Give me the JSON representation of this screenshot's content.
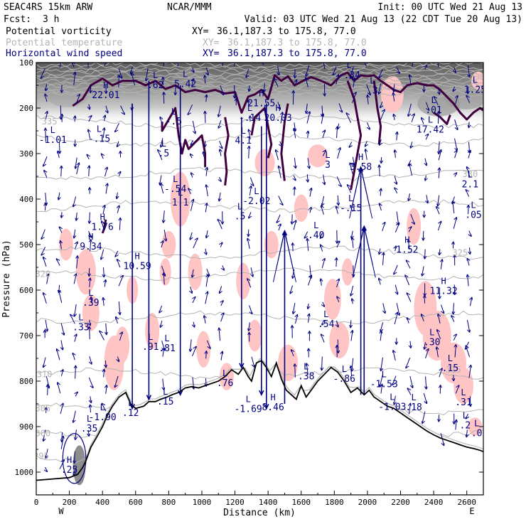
{
  "header": {
    "model": "SEAC4RS 15km ARW",
    "institution": "NCAR/MMM",
    "init": "Init: 00 UTC Wed 21 Aug 13",
    "fcst_label": "Fcst:",
    "fcst_value": "3 h",
    "valid": "Valid: 03 UTC Wed 21 Aug 13 (22 CDT Tue 20 Aug 13)"
  },
  "legend": [
    {
      "name": "Potential vorticity",
      "xy_label": "XY=",
      "xy_value": "36.1,187.3 to 175.8, 77.0",
      "color": "#000000"
    },
    {
      "name": "Potential temperature",
      "xy_label": "XY=",
      "xy_value": "36.1,187.3 to 175.8, 77.0",
      "color": "#b4b4b4"
    },
    {
      "name": "Horizontal wind speed",
      "xy_label": "XY=",
      "xy_value": "36.1,187.3 to 175.8, 77.0",
      "color": "#000080"
    }
  ],
  "chart_data": {
    "type": "cross-section",
    "xlabel": "Distance (km)",
    "ylabel": "Pressure (hPa)",
    "xlim": [
      0,
      2700
    ],
    "ylim": [
      1050,
      100
    ],
    "xticks": [
      0,
      200,
      400,
      600,
      800,
      1000,
      1200,
      1400,
      1600,
      1800,
      2000,
      2200,
      2400,
      2600
    ],
    "yticks": [
      100,
      200,
      300,
      400,
      500,
      600,
      700,
      800,
      900,
      1000
    ],
    "left_end_label": "W",
    "right_end_label": "E",
    "theta_contour_labels": [
      {
        "text": "335",
        "x": 80,
        "p": 230
      },
      {
        "text": "330",
        "x": 2620,
        "p": 345
      },
      {
        "text": "325",
        "x": 2560,
        "p": 518
      },
      {
        "text": "320",
        "x": 40,
        "p": 565
      },
      {
        "text": "315",
        "x": 2520,
        "p": 775
      },
      {
        "text": "310",
        "x": 50,
        "p": 785
      },
      {
        "text": "305",
        "x": 40,
        "p": 860
      },
      {
        "text": "300",
        "x": 40,
        "p": 915
      },
      {
        "text": "295",
        "x": 30,
        "p": 965
      }
    ],
    "pv_extrema": [
      {
        "type": "H",
        "value": "22.01",
        "x": 420,
        "p": 172
      },
      {
        "type": "L",
        "value": ".62",
        "x": 720,
        "p": 150
      },
      {
        "type": "L",
        "value": "5.42",
        "x": 900,
        "p": 148
      },
      {
        "type": "L",
        "value": "-1.01",
        "x": 100,
        "p": 270
      },
      {
        "type": "L",
        "value": "-.15",
        "x": 380,
        "p": 268
      },
      {
        "type": "L",
        "value": ".5",
        "x": 770,
        "p": 300
      },
      {
        "type": "L",
        "value": "-.5",
        "x": 830,
        "p": 230
      },
      {
        "type": "L",
        "value": "-.54",
        "x": 840,
        "p": 378
      },
      {
        "type": "L",
        "value": "1.1",
        "x": 870,
        "p": 408
      },
      {
        "type": "L",
        "value": "-.14",
        "x": 1290,
        "p": 222
      },
      {
        "type": "L",
        "value": "4.1",
        "x": 1250,
        "p": 272
      },
      {
        "type": "H",
        "value": "21.55",
        "x": 1360,
        "p": 190
      },
      {
        "type": "H",
        "value": "20.03",
        "x": 1460,
        "p": 222
      },
      {
        "type": "L",
        "value": "-2.02",
        "x": 1330,
        "p": 405
      },
      {
        "type": "H",
        "value": "1.76",
        "x": 400,
        "p": 462
      },
      {
        "type": "H",
        "value": "9.34",
        "x": 330,
        "p": 505
      },
      {
        "type": "H",
        "value": "10.59",
        "x": 610,
        "p": 548
      },
      {
        "type": "L",
        "value": ".39",
        "x": 330,
        "p": 628
      },
      {
        "type": "L",
        "value": ".33",
        "x": 270,
        "p": 682
      },
      {
        "type": "L",
        "value": ".40",
        "x": 1690,
        "p": 480
      },
      {
        "type": "L",
        "value": ".54",
        "x": 1750,
        "p": 675
      },
      {
        "type": "H",
        "value": "3.58",
        "x": 1960,
        "p": 330
      },
      {
        "type": "L",
        "value": "-.15",
        "x": 1900,
        "p": 420
      },
      {
        "type": "L",
        "value": ".38",
        "x": 1630,
        "p": 790
      },
      {
        "type": "L",
        "value": "-.86",
        "x": 1860,
        "p": 795
      },
      {
        "type": "L",
        "value": "-1.53",
        "x": 2100,
        "p": 807
      },
      {
        "type": "H",
        "value": "1.52",
        "x": 2240,
        "p": 512
      },
      {
        "type": "H",
        "value": "11.32",
        "x": 2460,
        "p": 602
      },
      {
        "type": "L",
        "value": ".30",
        "x": 2390,
        "p": 715
      },
      {
        "type": "L",
        "value": ".15",
        "x": 2500,
        "p": 772
      },
      {
        "type": "L",
        "value": ".91",
        "x": 690,
        "p": 725
      },
      {
        "type": "L",
        "value": ".81",
        "x": 790,
        "p": 728
      },
      {
        "type": "L",
        "value": ".76",
        "x": 1140,
        "p": 805
      },
      {
        "type": "L",
        "value": "-1.69",
        "x": 1280,
        "p": 862
      },
      {
        "type": "H",
        "value": "8.46",
        "x": 1430,
        "p": 858
      },
      {
        "type": "L",
        "value": ".15",
        "x": 780,
        "p": 845
      },
      {
        "type": "L",
        "value": ".12",
        "x": 570,
        "p": 870
      },
      {
        "type": "L",
        "value": "-1.90",
        "x": 400,
        "p": 880
      },
      {
        "type": "L",
        "value": "-1.03",
        "x": 2150,
        "p": 857
      },
      {
        "type": "L",
        "value": ".18",
        "x": 2280,
        "p": 858
      },
      {
        "type": "L",
        "value": ".31",
        "x": 2580,
        "p": 847
      },
      {
        "type": "L",
        "value": ".2",
        "x": 2590,
        "p": 898
      },
      {
        "type": "L",
        "value": ".0",
        "x": 2660,
        "p": 915
      },
      {
        "type": "H",
        "value": ".25",
        "x": 200,
        "p": 995
      },
      {
        "type": "L",
        "value": ".35",
        "x": 320,
        "p": 905
      },
      {
        "type": "L",
        "value": ".01",
        "x": 2400,
        "p": 205
      },
      {
        "type": "L",
        "value": "1.25",
        "x": 2650,
        "p": 160
      },
      {
        "type": "L",
        "value": "17.42",
        "x": 2380,
        "p": 248
      },
      {
        "type": "L",
        "value": "2.1",
        "x": 2620,
        "p": 368
      },
      {
        "type": "L",
        "value": ".05",
        "x": 2640,
        "p": 435
      },
      {
        "type": "L",
        "value": ".5",
        "x": 1230,
        "p": 438
      },
      {
        "type": "L",
        "value": "-.34",
        "x": 1890,
        "p": 128
      },
      {
        "type": "L",
        "value": ".3",
        "x": 2030,
        "p": 162
      },
      {
        "type": "L",
        "value": "3",
        "x": 1760,
        "p": 325
      }
    ],
    "terrain_profile": {
      "x": [
        0,
        100,
        200,
        250,
        280,
        300,
        330,
        370,
        400,
        430,
        460,
        500,
        540,
        570,
        600,
        650,
        680,
        720,
        750,
        790,
        820,
        860,
        900,
        940,
        980,
        1020,
        1060,
        1100,
        1140,
        1180,
        1220,
        1250,
        1280,
        1300,
        1330,
        1360,
        1390,
        1420,
        1450,
        1480,
        1510,
        1540,
        1570,
        1600,
        1630,
        1660,
        1700,
        1740,
        1780,
        1820,
        1860,
        1900,
        1940,
        1980,
        2010,
        2040,
        2080,
        2120,
        2160,
        2200,
        2240,
        2280,
        2320,
        2360,
        2400,
        2440,
        2480,
        2520,
        2560,
        2600,
        2640,
        2680,
        2700
      ],
      "p": [
        1018,
        1015,
        1012,
        1005,
        990,
        975,
        945,
        920,
        900,
        875,
        855,
        835,
        825,
        850,
        860,
        855,
        845,
        845,
        840,
        835,
        830,
        825,
        815,
        812,
        815,
        810,
        805,
        800,
        790,
        775,
        785,
        770,
        790,
        800,
        760,
        755,
        770,
        790,
        760,
        795,
        820,
        830,
        840,
        810,
        835,
        820,
        800,
        785,
        770,
        780,
        800,
        825,
        815,
        830,
        820,
        835,
        845,
        855,
        860,
        870,
        880,
        890,
        900,
        910,
        918,
        925,
        930,
        935,
        940,
        945,
        948,
        952,
        955
      ]
    }
  }
}
